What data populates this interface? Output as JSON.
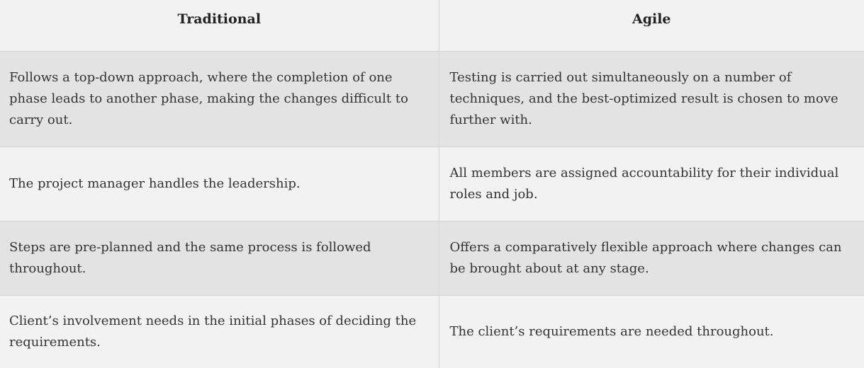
{
  "table": {
    "headers": {
      "traditional": "Traditional",
      "agile": "Agile"
    },
    "rows": [
      {
        "traditional": "Follows a top-down approach, where the completion of one phase leads to another phase, making the changes difficult to carry out.",
        "agile": "Testing is carried out simultaneously on a number of techniques, and the best-optimized result is chosen to move further with."
      },
      {
        "traditional": "The project manager handles the leadership.",
        "agile": "All members are assigned accountability for their individual roles and job."
      },
      {
        "traditional": "Steps are pre-planned and the same process is followed throughout.",
        "agile": "Offers a comparatively flexible approach where changes can be brought about at any stage."
      },
      {
        "traditional": "Client’s involvement needs in the initial phases of deciding the requirements.",
        "agile": "The client’s requirements are needed throughout."
      }
    ]
  }
}
